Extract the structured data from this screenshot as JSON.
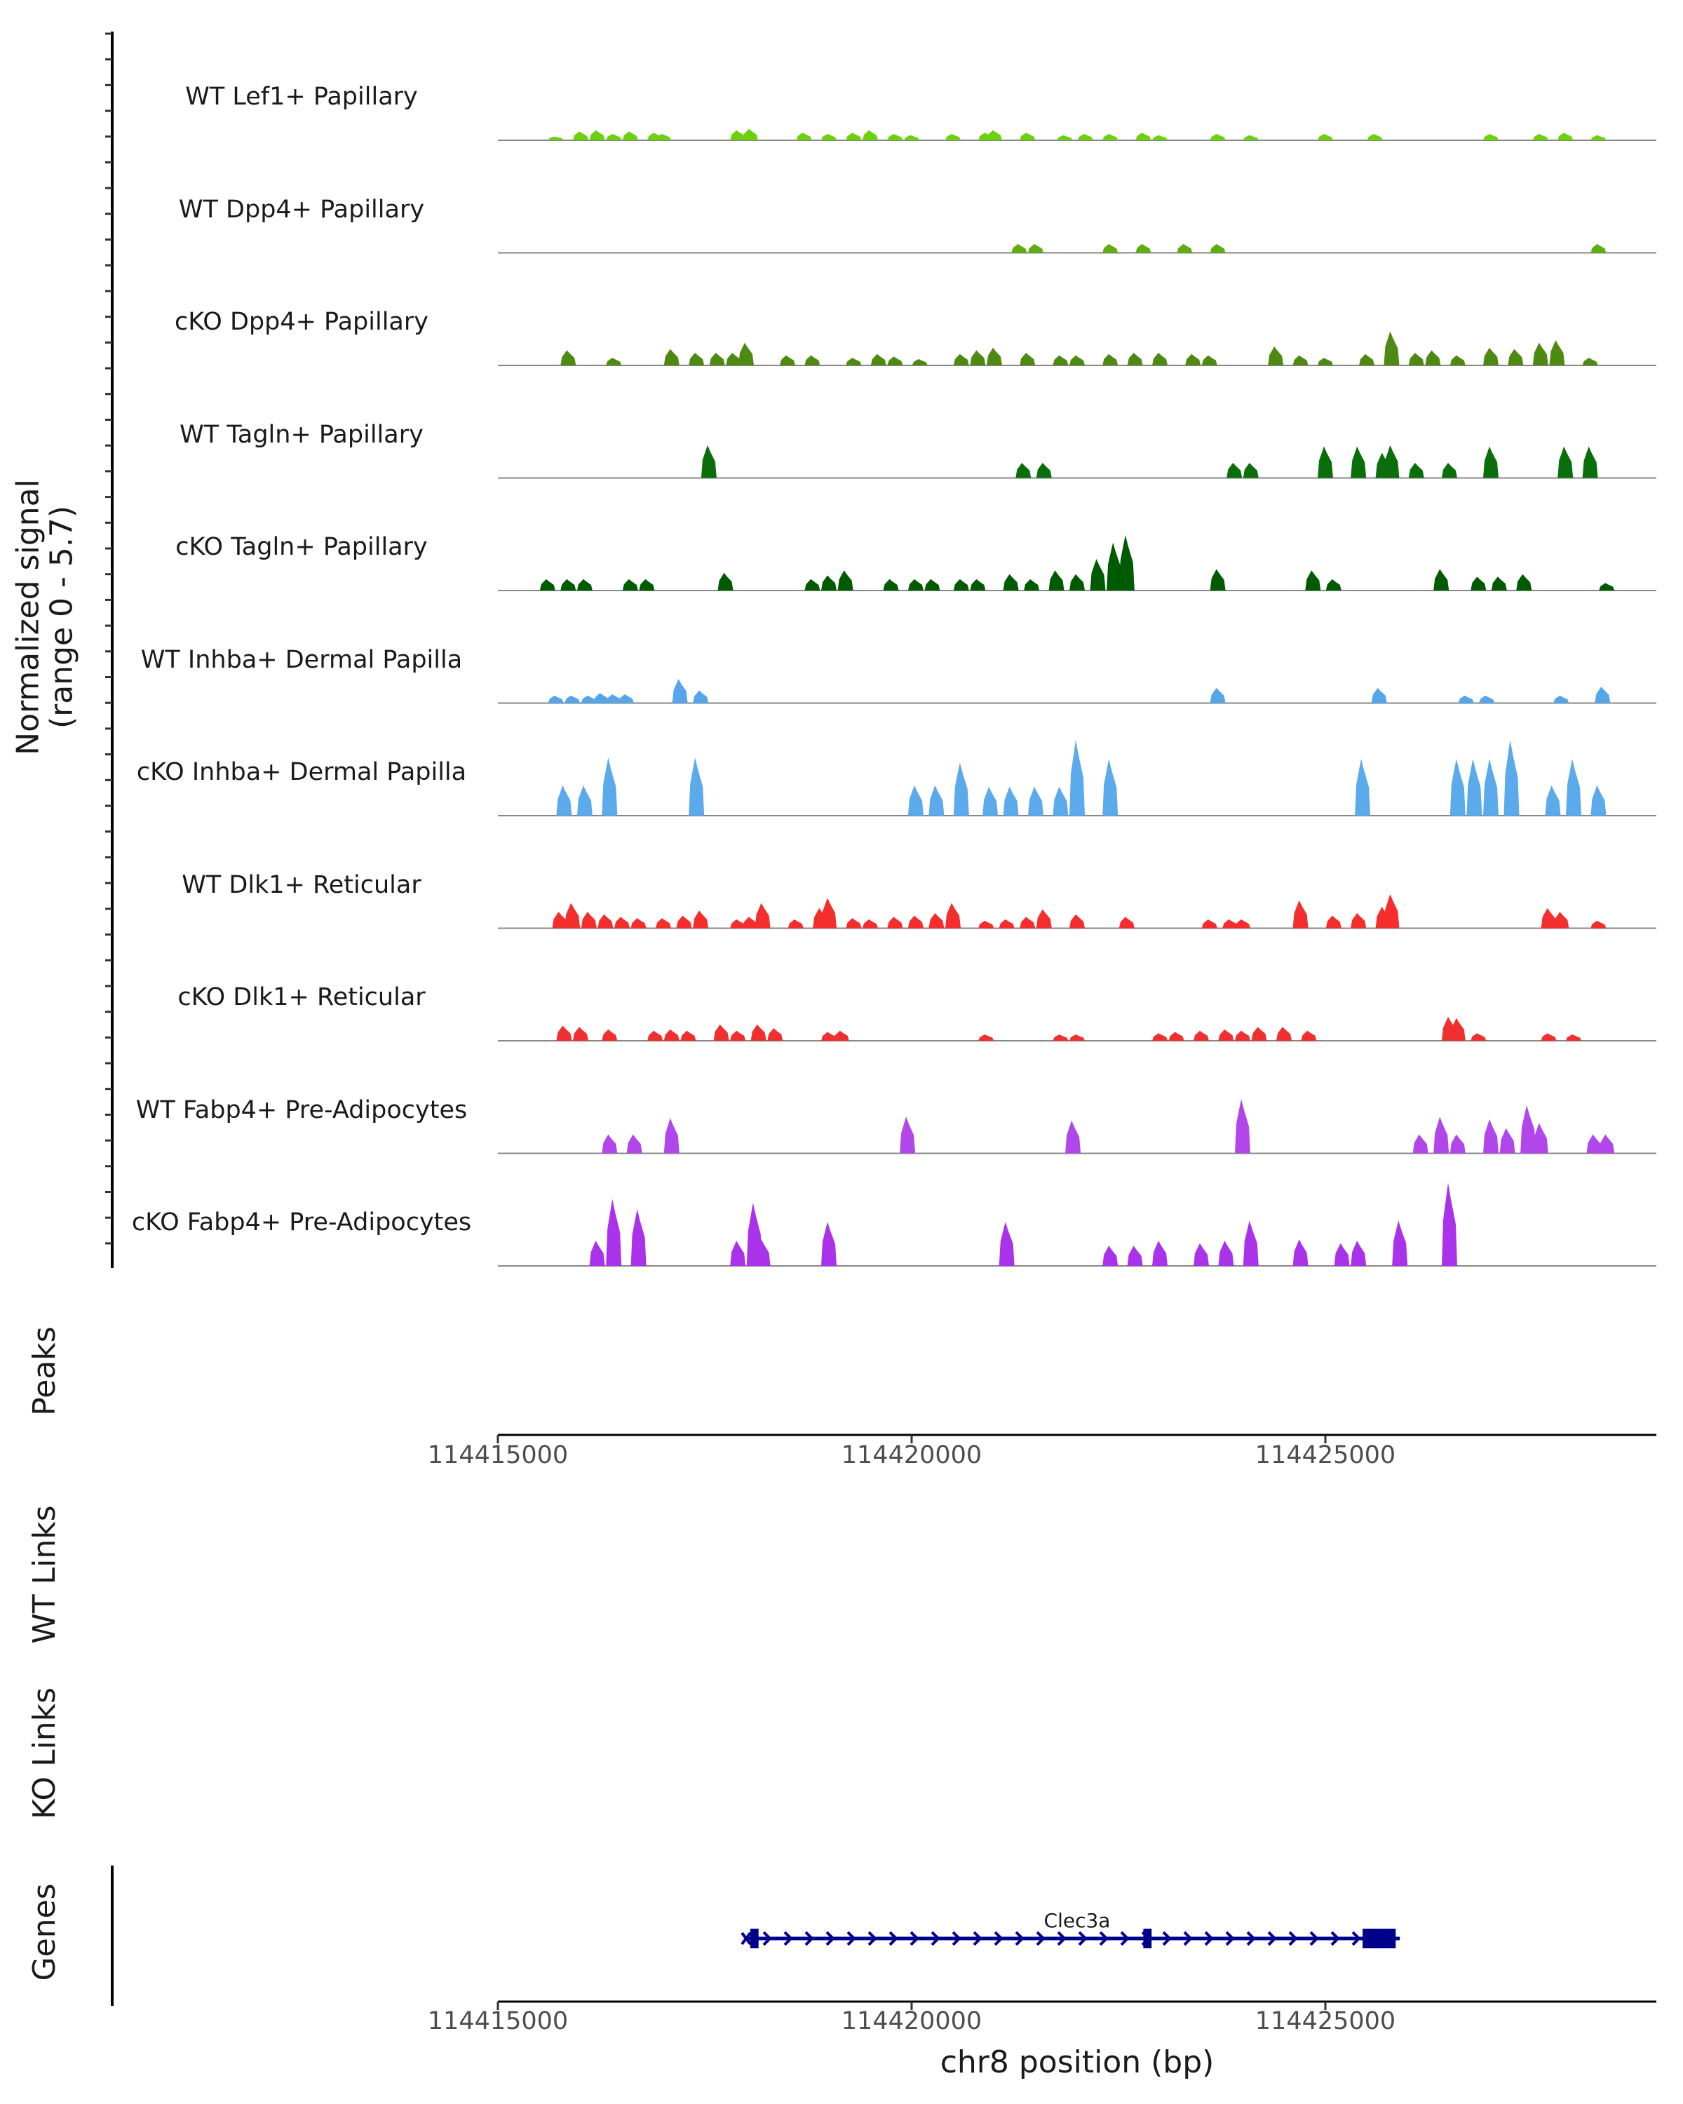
{
  "chart_data": {
    "type": "area",
    "title": "",
    "coverage_ylabel": "Normalized signal\n(range 0 - 5.7)",
    "ylim": [
      0,
      5.7
    ],
    "xlim": [
      114415000,
      114429000
    ],
    "xlabel": "chr8 position (bp)",
    "x_ticks": [
      114415000,
      114420000,
      114425000
    ],
    "tracks": [
      {
        "name": "WT Lef1+ Papillary",
        "color": "#6CD10D",
        "peaks": [
          [
            114415700,
            0.3
          ],
          [
            114416000,
            0.7
          ],
          [
            114416200,
            0.8
          ],
          [
            114416400,
            0.5
          ],
          [
            114416600,
            0.7
          ],
          [
            114416900,
            0.6
          ],
          [
            114417000,
            0.5
          ],
          [
            114417900,
            0.8
          ],
          [
            114418050,
            0.9
          ],
          [
            114418700,
            0.6
          ],
          [
            114419000,
            0.5
          ],
          [
            114419300,
            0.6
          ],
          [
            114419500,
            0.8
          ],
          [
            114419800,
            0.5
          ],
          [
            114420000,
            0.4
          ],
          [
            114420500,
            0.5
          ],
          [
            114420900,
            0.6
          ],
          [
            114421000,
            0.8
          ],
          [
            114421400,
            0.6
          ],
          [
            114421850,
            0.4
          ],
          [
            114422100,
            0.5
          ],
          [
            114422400,
            0.5
          ],
          [
            114422800,
            0.6
          ],
          [
            114423000,
            0.4
          ],
          [
            114423700,
            0.5
          ],
          [
            114424100,
            0.4
          ],
          [
            114425000,
            0.5
          ],
          [
            114425600,
            0.5
          ],
          [
            114427000,
            0.5
          ],
          [
            114427600,
            0.5
          ],
          [
            114427900,
            0.6
          ],
          [
            114428300,
            0.4
          ]
        ]
      },
      {
        "name": "WT Dpp4+ Papillary",
        "color": "#5FAE10",
        "peaks": [
          [
            114421300,
            0.7
          ],
          [
            114421500,
            0.7
          ],
          [
            114422400,
            0.7
          ],
          [
            114422800,
            0.7
          ],
          [
            114423300,
            0.7
          ],
          [
            114423700,
            0.7
          ],
          [
            114428300,
            0.7
          ]
        ]
      },
      {
        "name": "cKO Dpp4+ Papillary",
        "color": "#4E8A12",
        "peaks": [
          [
            114415850,
            1.2
          ],
          [
            114416400,
            0.6
          ],
          [
            114417100,
            1.3
          ],
          [
            114417400,
            1.0
          ],
          [
            114417650,
            1.0
          ],
          [
            114417850,
            1.0
          ],
          [
            114418000,
            1.8
          ],
          [
            114418500,
            0.8
          ],
          [
            114418800,
            0.8
          ],
          [
            114419300,
            0.6
          ],
          [
            114419600,
            0.9
          ],
          [
            114419800,
            0.7
          ],
          [
            114420100,
            0.5
          ],
          [
            114420600,
            0.9
          ],
          [
            114420800,
            1.2
          ],
          [
            114421000,
            1.4
          ],
          [
            114421400,
            1.0
          ],
          [
            114421800,
            0.8
          ],
          [
            114422000,
            0.8
          ],
          [
            114422400,
            0.9
          ],
          [
            114422700,
            1.0
          ],
          [
            114423000,
            1.0
          ],
          [
            114423400,
            0.9
          ],
          [
            114423600,
            0.8
          ],
          [
            114424400,
            1.5
          ],
          [
            114424700,
            0.8
          ],
          [
            114425000,
            0.6
          ],
          [
            114425500,
            0.9
          ],
          [
            114425800,
            2.7
          ],
          [
            114426100,
            1.0
          ],
          [
            114426300,
            1.2
          ],
          [
            114426600,
            0.8
          ],
          [
            114427000,
            1.4
          ],
          [
            114427300,
            1.3
          ],
          [
            114427600,
            1.8
          ],
          [
            114427800,
            2.0
          ],
          [
            114428200,
            0.6
          ]
        ]
      },
      {
        "name": "WT Tagln+ Papillary",
        "color": "#0A6F0A",
        "peaks": [
          [
            114417550,
            2.6
          ],
          [
            114421350,
            1.2
          ],
          [
            114421600,
            1.2
          ],
          [
            114423900,
            1.2
          ],
          [
            114424100,
            1.2
          ],
          [
            114425000,
            2.5
          ],
          [
            114425400,
            2.5
          ],
          [
            114425700,
            2.0
          ],
          [
            114425800,
            2.6
          ],
          [
            114426100,
            1.2
          ],
          [
            114426500,
            1.2
          ],
          [
            114427000,
            2.5
          ],
          [
            114427900,
            2.5
          ],
          [
            114428200,
            2.5
          ]
        ]
      },
      {
        "name": "cKO Tagln+ Papillary",
        "color": "#005A00",
        "peaks": [
          [
            114415600,
            0.9
          ],
          [
            114415850,
            0.9
          ],
          [
            114416050,
            0.9
          ],
          [
            114416600,
            0.9
          ],
          [
            114416800,
            0.9
          ],
          [
            114417750,
            1.4
          ],
          [
            114418800,
            0.9
          ],
          [
            114419000,
            1.2
          ],
          [
            114419200,
            1.6
          ],
          [
            114419750,
            0.9
          ],
          [
            114420050,
            0.9
          ],
          [
            114420250,
            0.9
          ],
          [
            114420600,
            0.9
          ],
          [
            114420800,
            0.9
          ],
          [
            114421200,
            1.3
          ],
          [
            114421450,
            0.9
          ],
          [
            114421750,
            1.6
          ],
          [
            114422000,
            1.3
          ],
          [
            114422250,
            2.5
          ],
          [
            114422450,
            3.8
          ],
          [
            114422600,
            4.4
          ],
          [
            114423700,
            1.7
          ],
          [
            114424850,
            1.6
          ],
          [
            114425100,
            0.9
          ],
          [
            114426400,
            1.7
          ],
          [
            114426850,
            1.1
          ],
          [
            114427100,
            1.1
          ],
          [
            114427400,
            1.3
          ],
          [
            114428400,
            0.6
          ]
        ]
      },
      {
        "name": "WT Inhba+ Dermal Papilla",
        "color": "#56A4EA",
        "peaks": [
          [
            114415700,
            0.6
          ],
          [
            114415900,
            0.6
          ],
          [
            114416100,
            0.6
          ],
          [
            114416250,
            0.8
          ],
          [
            114416400,
            0.7
          ],
          [
            114416550,
            0.7
          ],
          [
            114417200,
            1.9
          ],
          [
            114417450,
            1.0
          ],
          [
            114423700,
            1.2
          ],
          [
            114425650,
            1.2
          ],
          [
            114426700,
            0.6
          ],
          [
            114426950,
            0.6
          ],
          [
            114427850,
            0.6
          ],
          [
            114428350,
            1.3
          ]
        ]
      },
      {
        "name": "cKO Inhba+ Dermal Papilla",
        "color": "#5AAAEC",
        "peaks": [
          [
            114415800,
            2.4
          ],
          [
            114416050,
            2.4
          ],
          [
            114416350,
            4.6
          ],
          [
            114417400,
            4.6
          ],
          [
            114420050,
            2.4
          ],
          [
            114420300,
            2.4
          ],
          [
            114420600,
            4.2
          ],
          [
            114420950,
            2.3
          ],
          [
            114421200,
            2.3
          ],
          [
            114421500,
            2.3
          ],
          [
            114421800,
            2.3
          ],
          [
            114422000,
            6.0
          ],
          [
            114422400,
            4.5
          ],
          [
            114425450,
            4.5
          ],
          [
            114426600,
            4.5
          ],
          [
            114426800,
            4.5
          ],
          [
            114427000,
            4.5
          ],
          [
            114427250,
            6.0
          ],
          [
            114427750,
            2.4
          ],
          [
            114428000,
            4.5
          ],
          [
            114428300,
            2.4
          ]
        ]
      },
      {
        "name": "WT Dlk1+ Reticular",
        "color": "#F42D2D",
        "peaks": [
          [
            114415750,
            1.3
          ],
          [
            114415900,
            2.0
          ],
          [
            114416100,
            1.3
          ],
          [
            114416300,
            1.1
          ],
          [
            114416500,
            0.9
          ],
          [
            114416700,
            0.8
          ],
          [
            114417000,
            0.8
          ],
          [
            114417250,
            1.0
          ],
          [
            114417450,
            1.4
          ],
          [
            114417900,
            0.7
          ],
          [
            114418050,
            0.9
          ],
          [
            114418200,
            2.0
          ],
          [
            114418600,
            0.7
          ],
          [
            114418900,
            1.6
          ],
          [
            114419000,
            2.4
          ],
          [
            114419300,
            0.8
          ],
          [
            114419500,
            0.7
          ],
          [
            114419800,
            0.9
          ],
          [
            114420050,
            1.0
          ],
          [
            114420300,
            1.2
          ],
          [
            114420500,
            2.0
          ],
          [
            114420900,
            0.6
          ],
          [
            114421150,
            0.7
          ],
          [
            114421400,
            0.9
          ],
          [
            114421600,
            1.5
          ],
          [
            114422000,
            1.1
          ],
          [
            114422600,
            0.9
          ],
          [
            114423600,
            0.7
          ],
          [
            114423850,
            0.7
          ],
          [
            114424000,
            0.7
          ],
          [
            114424700,
            2.2
          ],
          [
            114425100,
            1.0
          ],
          [
            114425400,
            1.2
          ],
          [
            114425700,
            1.7
          ],
          [
            114425800,
            2.7
          ],
          [
            114427700,
            1.6
          ],
          [
            114427850,
            1.3
          ],
          [
            114428300,
            0.6
          ]
        ]
      },
      {
        "name": "cKO Dlk1+ Reticular",
        "color": "#F03030",
        "peaks": [
          [
            114415800,
            1.2
          ],
          [
            114416000,
            1.1
          ],
          [
            114416350,
            0.9
          ],
          [
            114416900,
            0.8
          ],
          [
            114417100,
            0.9
          ],
          [
            114417300,
            0.8
          ],
          [
            114417700,
            1.3
          ],
          [
            114417900,
            0.8
          ],
          [
            114418150,
            1.3
          ],
          [
            114418350,
            1.0
          ],
          [
            114419000,
            0.7
          ],
          [
            114419150,
            0.8
          ],
          [
            114420900,
            0.5
          ],
          [
            114421800,
            0.5
          ],
          [
            114422000,
            0.5
          ],
          [
            114423000,
            0.6
          ],
          [
            114423200,
            0.7
          ],
          [
            114423500,
            0.8
          ],
          [
            114423800,
            0.9
          ],
          [
            114424000,
            0.8
          ],
          [
            114424200,
            1.1
          ],
          [
            114424500,
            1.1
          ],
          [
            114424800,
            0.8
          ],
          [
            114426500,
            1.9
          ],
          [
            114426600,
            1.8
          ],
          [
            114426850,
            0.6
          ],
          [
            114427700,
            0.6
          ],
          [
            114428000,
            0.5
          ]
        ]
      },
      {
        "name": "WT Fabp4+ Pre-Adipocytes",
        "color": "#B146EB",
        "peaks": [
          [
            114416350,
            1.5
          ],
          [
            114416650,
            1.5
          ],
          [
            114417100,
            2.8
          ],
          [
            114419950,
            2.9
          ],
          [
            114421950,
            2.6
          ],
          [
            114424000,
            4.3
          ],
          [
            114426150,
            1.5
          ],
          [
            114426400,
            2.9
          ],
          [
            114426600,
            1.5
          ],
          [
            114427000,
            2.7
          ],
          [
            114427200,
            2.0
          ],
          [
            114427450,
            3.8
          ],
          [
            114427600,
            2.4
          ],
          [
            114428250,
            1.5
          ],
          [
            114428400,
            1.5
          ]
        ]
      },
      {
        "name": "cKO Fabp4+ Pre-Adipocytes",
        "color": "#A932EA",
        "peaks": [
          [
            114416200,
            2.0
          ],
          [
            114416400,
            5.3
          ],
          [
            114416700,
            4.5
          ],
          [
            114417900,
            2.0
          ],
          [
            114418100,
            5.0
          ],
          [
            114418200,
            2.1
          ],
          [
            114419000,
            3.5
          ],
          [
            114421150,
            3.5
          ],
          [
            114422400,
            1.6
          ],
          [
            114422700,
            1.6
          ],
          [
            114423000,
            2.0
          ],
          [
            114423500,
            1.8
          ],
          [
            114423800,
            2.0
          ],
          [
            114424100,
            3.6
          ],
          [
            114424700,
            2.1
          ],
          [
            114425200,
            1.8
          ],
          [
            114425400,
            2.0
          ],
          [
            114425900,
            3.6
          ],
          [
            114426500,
            6.6
          ]
        ]
      }
    ],
    "gene": {
      "name": "Clec3a",
      "start": 114418000,
      "end": 114425900,
      "exons": [
        [
          114418050,
          114418150
        ],
        [
          114422800,
          114422900
        ],
        [
          114425450,
          114425850
        ]
      ],
      "strand": "+",
      "color": "#00008B"
    }
  },
  "labels": {
    "coverage_ylabel_line1": "Normalized signal",
    "coverage_ylabel_line2": "(range 0 - 5.7)",
    "peaks": "Peaks",
    "wt_links": "WT Links",
    "ko_links": "KO Links",
    "genes": "Genes",
    "tick1": "114415000",
    "tick2": "114420000",
    "tick3": "114425000",
    "xtitle": "chr8 position (bp)"
  }
}
